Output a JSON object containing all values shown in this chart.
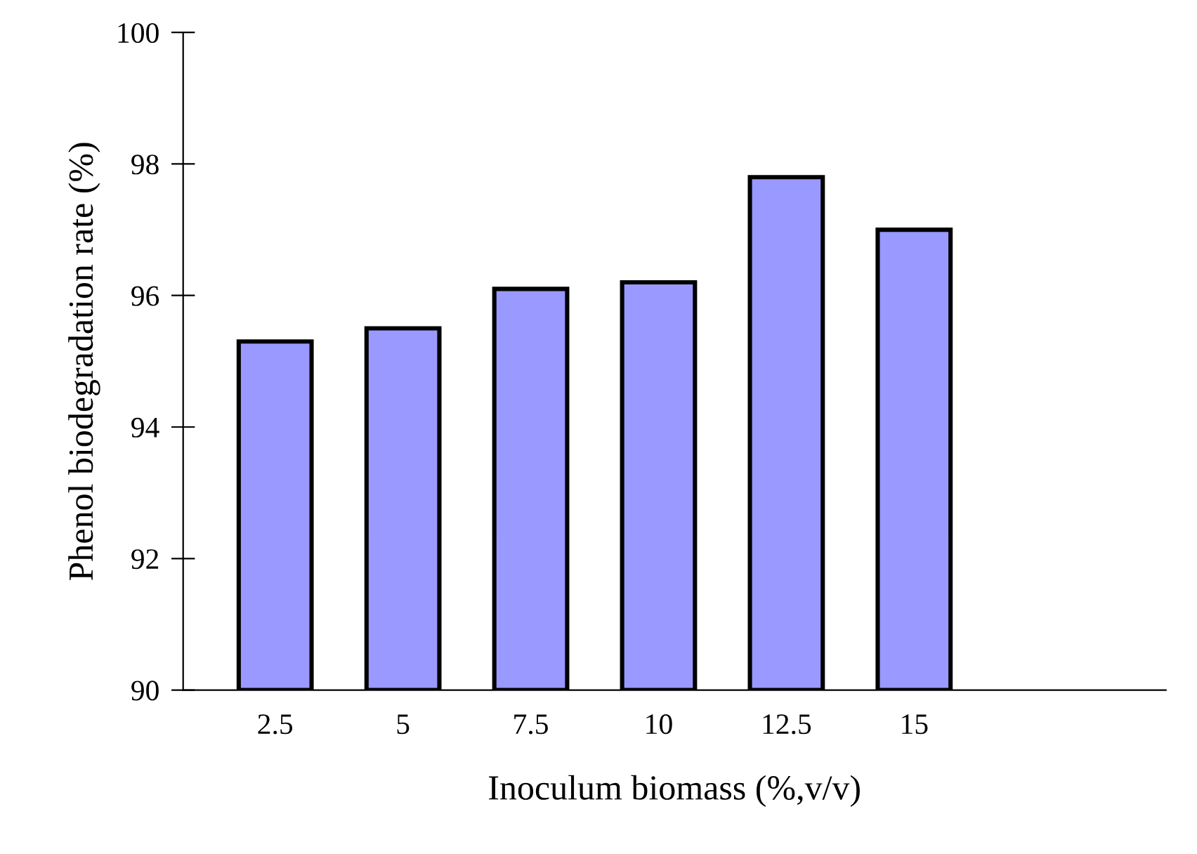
{
  "chart_data": {
    "type": "bar",
    "xlabel": "Inoculum biomass (%,v/v)",
    "ylabel": "Phenol biodegradation rate (%)",
    "categories": [
      "2.5",
      "5",
      "7.5",
      "10",
      "12.5",
      "15"
    ],
    "values": [
      95.3,
      95.5,
      96.1,
      96.2,
      97.8,
      97.0
    ],
    "color": "#9999ff",
    "ylim": [
      90,
      100
    ],
    "yticks": [
      90,
      92,
      94,
      96,
      98,
      100
    ],
    "grid": false,
    "legend": false
  }
}
